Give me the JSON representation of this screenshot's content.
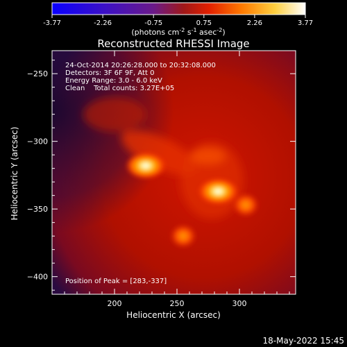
{
  "chart_data": {
    "type": "heatmap",
    "title": "Reconstructed RHESSI Image",
    "xlabel": "Heliocentric X (arcsec)",
    "ylabel": "Heliocentric Y (arcsec)",
    "xlim": [
      150,
      345
    ],
    "ylim": [
      -413,
      -233
    ],
    "x_ticks": [
      "200",
      "250",
      "300"
    ],
    "y_ticks": [
      "-250",
      "-300",
      "-350",
      "-400"
    ],
    "colorbar": {
      "ticks": [
        "-3.77",
        "-2.26",
        "-0.75",
        "0.75",
        "2.26",
        "3.77"
      ],
      "range": [
        -3.77,
        3.77
      ],
      "label_parts": [
        "(photons cm",
        "-2",
        " s",
        "-1",
        " asec",
        "-2",
        ")"
      ]
    },
    "annotations": [
      "24-Oct-2014 20:26:28.000 to 20:32:08.000",
      "Detectors: 3F 6F 9F, Att 0",
      "Energy Range: 3.0 - 6.0 keV",
      "Clean    Total counts: 3.27E+05"
    ],
    "peak_label": "Position of Peak = [283,-337]",
    "sources": [
      {
        "x": 225,
        "y": -318,
        "level": 3.6
      },
      {
        "x": 283,
        "y": -337,
        "level": 3.77
      },
      {
        "x": 305,
        "y": -347,
        "level": 2.6
      },
      {
        "x": 255,
        "y": -370,
        "level": 2.8
      }
    ]
  },
  "footer": {
    "date": "18-May-2022 15:45"
  }
}
